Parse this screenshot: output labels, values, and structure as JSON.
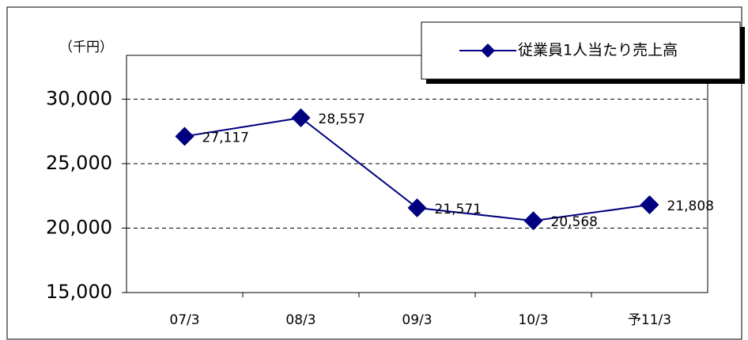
{
  "chart_data": {
    "type": "line",
    "y_axis_label": "（千円）",
    "categories": [
      "07/3",
      "08/3",
      "09/3",
      "10/3",
      "予11/3"
    ],
    "series": [
      {
        "name": "従業員1人当たり売上高",
        "color": "#000080",
        "values": [
          27117,
          28557,
          21571,
          20568,
          21808
        ],
        "value_labels": [
          "27,117",
          "28,557",
          "21,571",
          "20,568",
          "21,808"
        ]
      }
    ],
    "ylim": [
      15000,
      33400
    ],
    "yticks": [
      {
        "value": 15000,
        "label": "15,000"
      },
      {
        "value": 20000,
        "label": "20,000"
      },
      {
        "value": 25000,
        "label": "25,000"
      },
      {
        "value": 30000,
        "label": "30,000"
      }
    ],
    "grid": true,
    "legend": "top-right"
  }
}
